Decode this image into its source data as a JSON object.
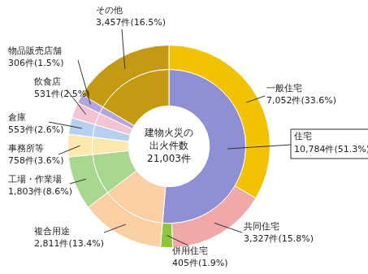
{
  "chart_data": {
    "type": "doughnut",
    "center_text": [
      "建物火災の",
      "出火件数",
      "21,003件"
    ],
    "categories": [
      "一般住宅",
      "共同住宅",
      "併用住宅",
      "複合用途",
      "工場・作業場",
      "事務所等",
      "倉庫",
      "飲食店",
      "物品販売店舗",
      "その他"
    ],
    "values": [
      7052,
      3327,
      405,
      2811,
      1803,
      758,
      553,
      531,
      306,
      3457
    ],
    "value_labels": [
      "7,052件(33.6%)",
      "3,327件(15.8%)",
      "405件(1.9%)",
      "2,811件(13.4%)",
      "1,803件(8.6%)",
      "758件(3.6%)",
      "553件(2.6%)",
      "531件(2.5%)",
      "306件(1.5%)",
      "3,457件(16.5%)"
    ],
    "colors": [
      "#f2c200",
      "#f0a8a8",
      "#8cc63f",
      "#f9cfa3",
      "#a8d890",
      "#fbe8ad",
      "#b8d0f0",
      "#f4c4d4",
      "#b4a6dc",
      "#c49a12"
    ],
    "groups": [
      {
        "name": "住宅",
        "members": [
          "一般住宅",
          "共同住宅",
          "併用住宅"
        ],
        "value": 10784,
        "value_label": "10,784件(51.3%)",
        "color": "#8f8fd6"
      }
    ],
    "data_labels": true
  }
}
